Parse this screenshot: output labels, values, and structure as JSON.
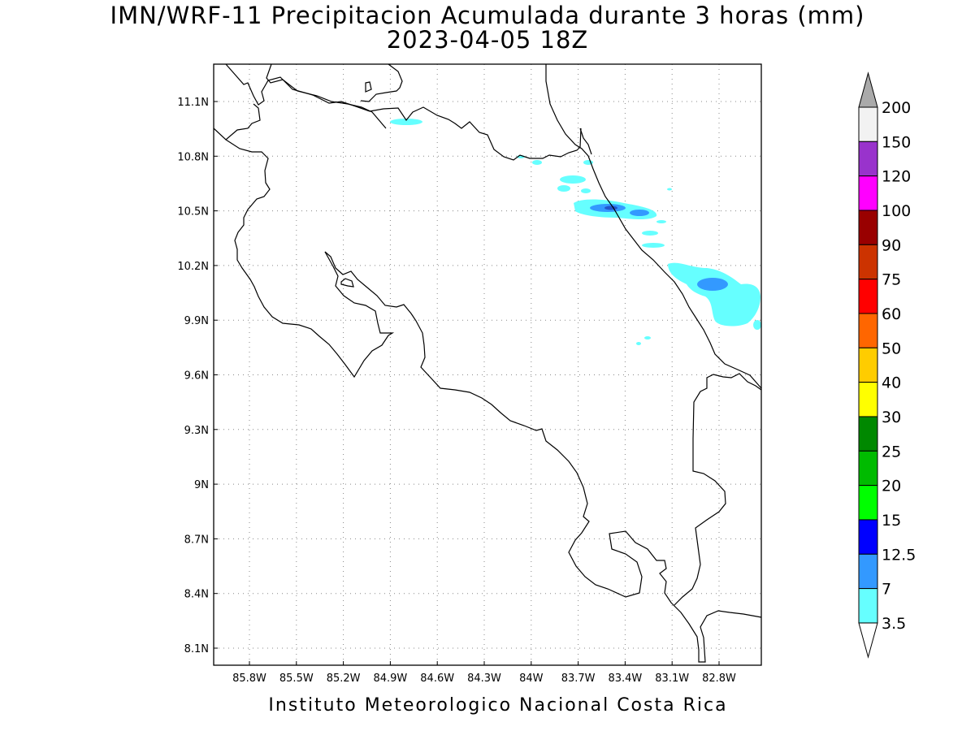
{
  "title": "IMN/WRF-11 Precipitacion Acumulada durante 3 horas (mm)",
  "subtitle": "2023-04-05 18Z",
  "footer": "Instituto Meteorologico Nacional Costa Rica",
  "map": {
    "lon_labels": [
      "85.8W",
      "85.5W",
      "85.2W",
      "84.9W",
      "84.6W",
      "84.3W",
      "84W",
      "83.7W",
      "83.4W",
      "83.1W",
      "82.8W"
    ],
    "lat_labels": [
      "11.1N",
      "10.8N",
      "10.5N",
      "10.2N",
      "9.9N",
      "9.6N",
      "9.3N",
      "9N",
      "8.7N",
      "8.4N",
      "8.1N"
    ]
  },
  "colorbar": {
    "labels": [
      "200",
      "150",
      "120",
      "100",
      "90",
      "75",
      "60",
      "50",
      "40",
      "30",
      "25",
      "20",
      "15",
      "12.5",
      "7",
      "3.5"
    ],
    "colors": [
      "#f2f2f2",
      "#9933cc",
      "#ff00ff",
      "#990000",
      "#cc3300",
      "#ff0000",
      "#ff6600",
      "#ffcc00",
      "#ffff00",
      "#008800",
      "#00bb00",
      "#00ff00",
      "#0000ff",
      "#3399ff",
      "#66ffff"
    ],
    "over_color": "#aaaaaa",
    "under_color": "#ffffff"
  },
  "precip_colors": {
    "light": "#66ffff",
    "mid": "#3399ff",
    "heavy": "#2255cc"
  }
}
